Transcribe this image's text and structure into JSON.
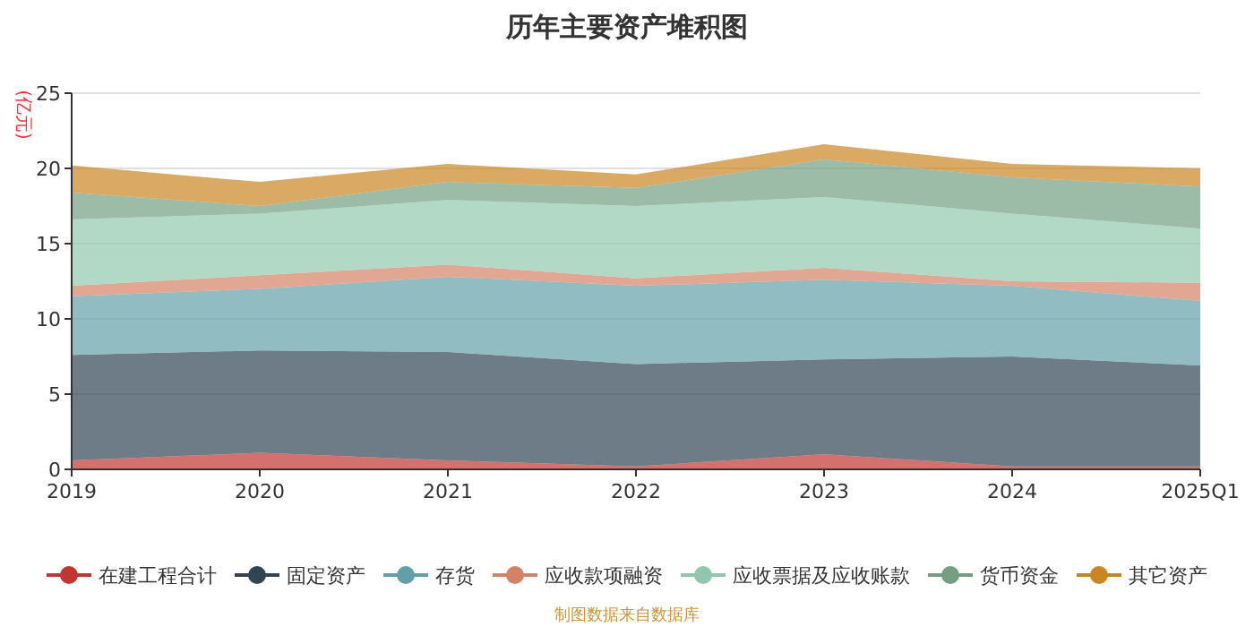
{
  "chart_data": {
    "type": "area",
    "title": "历年主要资产堆积图",
    "ylabel": "(亿元)",
    "stacked": true,
    "categories": [
      "2019",
      "2020",
      "2021",
      "2022",
      "2023",
      "2024",
      "2025Q1"
    ],
    "ylim": [
      0,
      25
    ],
    "yticks": [
      0,
      5,
      10,
      15,
      20,
      25
    ],
    "grid": "y",
    "legend": "bottom",
    "series": [
      {
        "name": "在建工程合计",
        "color": "#c23531",
        "values": [
          0.6,
          1.1,
          0.6,
          0.2,
          1.0,
          0.2,
          0.2
        ]
      },
      {
        "name": "固定资产",
        "color": "#2f4554",
        "values": [
          7.0,
          6.8,
          7.2,
          6.8,
          6.3,
          7.3,
          6.7
        ]
      },
      {
        "name": "存货",
        "color": "#61a0a8",
        "values": [
          3.9,
          4.1,
          5.0,
          5.2,
          5.3,
          4.7,
          4.3
        ]
      },
      {
        "name": "应收款项融资",
        "color": "#d48265",
        "values": [
          0.7,
          0.9,
          0.8,
          0.5,
          0.8,
          0.3,
          1.2
        ]
      },
      {
        "name": "应收票据及应收账款",
        "color": "#91c7ae",
        "values": [
          4.4,
          4.1,
          4.3,
          4.8,
          4.7,
          4.5,
          3.6
        ]
      },
      {
        "name": "货币资金",
        "color": "#749f83",
        "values": [
          1.8,
          0.5,
          1.2,
          1.2,
          2.5,
          2.4,
          2.8
        ]
      },
      {
        "name": "其它资产",
        "color": "#ca8622",
        "values": [
          1.8,
          1.6,
          1.2,
          0.9,
          1.0,
          0.9,
          1.2
        ]
      }
    ],
    "annotations": [
      "制图数据来自数据库"
    ]
  }
}
